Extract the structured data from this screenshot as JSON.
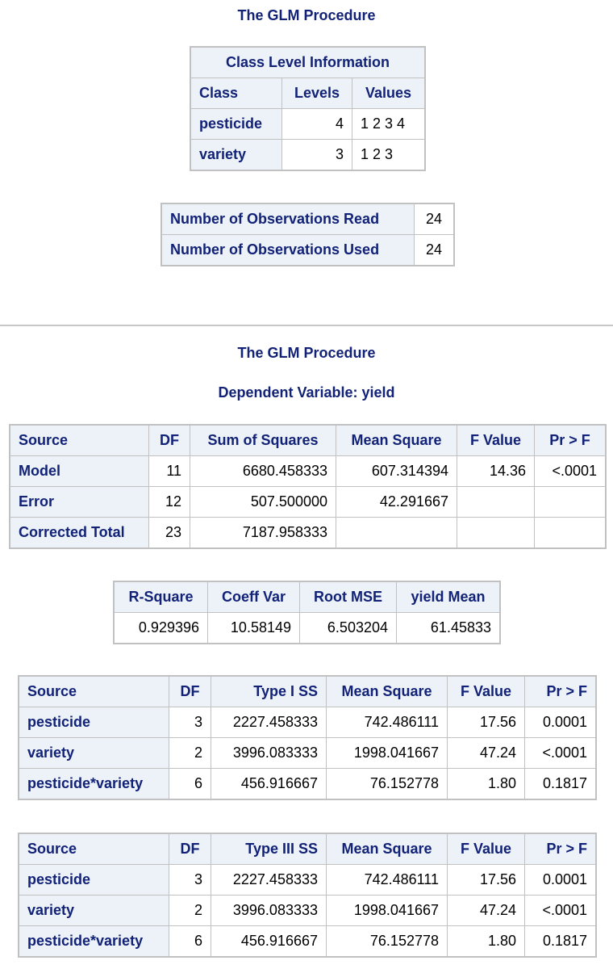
{
  "section1": {
    "title": "The GLM Procedure",
    "class_info": {
      "caption": "Class Level Information",
      "headers": [
        "Class",
        "Levels",
        "Values"
      ],
      "rows": [
        {
          "class": "pesticide",
          "levels": "4",
          "values": "1 2 3 4"
        },
        {
          "class": "variety",
          "levels": "3",
          "values": "1 2 3"
        }
      ]
    },
    "observations": {
      "rows": [
        {
          "label": "Number of Observations Read",
          "value": "24"
        },
        {
          "label": "Number of Observations Used",
          "value": "24"
        }
      ]
    }
  },
  "section2": {
    "title": "The GLM Procedure",
    "subtitle": "Dependent Variable: yield",
    "anova": {
      "headers": [
        "Source",
        "DF",
        "Sum of Squares",
        "Mean Square",
        "F Value",
        "Pr > F"
      ],
      "rows": [
        {
          "source": "Model",
          "df": "11",
          "ss": "6680.458333",
          "ms": "607.314394",
          "f": "14.36",
          "p": "<.0001"
        },
        {
          "source": "Error",
          "df": "12",
          "ss": "507.500000",
          "ms": "42.291667",
          "f": "",
          "p": ""
        },
        {
          "source": "Corrected Total",
          "df": "23",
          "ss": "7187.958333",
          "ms": "",
          "f": "",
          "p": ""
        }
      ]
    },
    "fit": {
      "headers": [
        "R-Square",
        "Coeff Var",
        "Root MSE",
        "yield Mean"
      ],
      "values": [
        "0.929396",
        "10.58149",
        "6.503204",
        "61.45833"
      ]
    },
    "type1": {
      "headers": [
        "Source",
        "DF",
        "Type I SS",
        "Mean Square",
        "F Value",
        "Pr > F"
      ],
      "rows": [
        {
          "source": "pesticide",
          "df": "3",
          "ss": "2227.458333",
          "ms": "742.486111",
          "f": "17.56",
          "p": "0.0001"
        },
        {
          "source": "variety",
          "df": "2",
          "ss": "3996.083333",
          "ms": "1998.041667",
          "f": "47.24",
          "p": "<.0001"
        },
        {
          "source": "pesticide*variety",
          "df": "6",
          "ss": "456.916667",
          "ms": "76.152778",
          "f": "1.80",
          "p": "0.1817"
        }
      ]
    },
    "type3": {
      "headers": [
        "Source",
        "DF",
        "Type III SS",
        "Mean Square",
        "F Value",
        "Pr > F"
      ],
      "rows": [
        {
          "source": "pesticide",
          "df": "3",
          "ss": "2227.458333",
          "ms": "742.486111",
          "f": "17.56",
          "p": "0.0001"
        },
        {
          "source": "variety",
          "df": "2",
          "ss": "3996.083333",
          "ms": "1998.041667",
          "f": "47.24",
          "p": "<.0001"
        },
        {
          "source": "pesticide*variety",
          "df": "6",
          "ss": "456.916667",
          "ms": "76.152778",
          "f": "1.80",
          "p": "0.1817"
        }
      ]
    }
  },
  "colors": {
    "header_bg": "#edf2f9",
    "header_text": "#112277",
    "border": "#c1c1c1"
  }
}
